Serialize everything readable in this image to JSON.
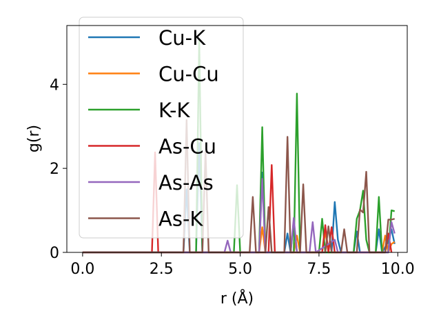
{
  "chart_data": {
    "type": "line",
    "title": "",
    "xlabel": "r (Å)",
    "ylabel": "g(r)",
    "xlim": [
      -0.5,
      10.3
    ],
    "ylim": [
      0,
      5.4
    ],
    "xticks": [
      0.0,
      2.5,
      5.0,
      7.5,
      10.0
    ],
    "xtick_labels": [
      "0.0",
      "2.5",
      "5.0",
      "7.5",
      "10.0"
    ],
    "yticks": [
      0,
      2,
      4
    ],
    "ytick_labels": [
      "0",
      "2",
      "4"
    ],
    "grid": false,
    "legend_position": "top-left",
    "series": [
      {
        "name": "Cu-K",
        "color": "#1f77b4",
        "points": [
          [
            0.0,
            0
          ],
          [
            3.2,
            0
          ],
          [
            3.3,
            1.5
          ],
          [
            3.4,
            0
          ],
          [
            3.6,
            0
          ],
          [
            3.7,
            2.6
          ],
          [
            3.8,
            0
          ],
          [
            5.6,
            0
          ],
          [
            5.7,
            1.9
          ],
          [
            5.8,
            0
          ],
          [
            6.4,
            0
          ],
          [
            6.5,
            0.45
          ],
          [
            6.6,
            0
          ],
          [
            6.7,
            0.75
          ],
          [
            6.8,
            0
          ],
          [
            7.9,
            0
          ],
          [
            8.0,
            1.2
          ],
          [
            8.1,
            0.3
          ],
          [
            8.2,
            0
          ],
          [
            8.6,
            0
          ],
          [
            8.7,
            0.5
          ],
          [
            8.8,
            0
          ],
          [
            9.3,
            0
          ],
          [
            9.4,
            0.55
          ],
          [
            9.5,
            0
          ],
          [
            9.7,
            0.25
          ],
          [
            9.8,
            0.55
          ],
          [
            9.9,
            0.2
          ]
        ]
      },
      {
        "name": "Cu-Cu",
        "color": "#ff7f0e",
        "points": [
          [
            0.0,
            0
          ],
          [
            5.6,
            0
          ],
          [
            5.7,
            0.6
          ],
          [
            5.8,
            0
          ],
          [
            6.7,
            0
          ],
          [
            6.8,
            0.4
          ],
          [
            6.9,
            0
          ],
          [
            7.6,
            0
          ],
          [
            7.7,
            0.5
          ],
          [
            7.8,
            0
          ],
          [
            9.5,
            0
          ],
          [
            9.6,
            0.4
          ],
          [
            9.7,
            0
          ],
          [
            9.8,
            0.2
          ],
          [
            9.9,
            0.25
          ]
        ]
      },
      {
        "name": "K-K",
        "color": "#2ca02c",
        "points": [
          [
            0.0,
            0
          ],
          [
            3.6,
            0
          ],
          [
            3.7,
            5.05
          ],
          [
            3.8,
            0
          ],
          [
            4.8,
            0
          ],
          [
            4.9,
            1.6
          ],
          [
            5.0,
            0
          ],
          [
            5.6,
            0
          ],
          [
            5.7,
            2.98
          ],
          [
            5.8,
            0
          ],
          [
            6.7,
            0
          ],
          [
            6.8,
            3.78
          ],
          [
            6.9,
            0
          ],
          [
            7.5,
            0
          ],
          [
            7.6,
            0.8
          ],
          [
            7.7,
            0
          ],
          [
            8.6,
            0
          ],
          [
            8.7,
            0.8
          ],
          [
            8.8,
            1.0
          ],
          [
            8.9,
            1.47
          ],
          [
            9.0,
            0.3
          ],
          [
            9.1,
            0
          ],
          [
            9.3,
            0
          ],
          [
            9.4,
            1.32
          ],
          [
            9.5,
            0
          ],
          [
            9.7,
            0
          ],
          [
            9.8,
            1.0
          ],
          [
            9.9,
            0.98
          ]
        ]
      },
      {
        "name": "As-Cu",
        "color": "#d62728",
        "points": [
          [
            0.0,
            0
          ],
          [
            2.2,
            0
          ],
          [
            2.3,
            2.38
          ],
          [
            2.4,
            0
          ],
          [
            5.9,
            0
          ],
          [
            6.0,
            2.08
          ],
          [
            6.1,
            0
          ],
          [
            7.6,
            0
          ],
          [
            7.7,
            0.65
          ],
          [
            7.8,
            0
          ],
          [
            7.9,
            0.6
          ],
          [
            8.0,
            0
          ],
          [
            9.6,
            0
          ],
          [
            9.7,
            0.45
          ],
          [
            9.8,
            0
          ]
        ]
      },
      {
        "name": "As-As",
        "color": "#9467bd",
        "points": [
          [
            0.0,
            0
          ],
          [
            4.5,
            0
          ],
          [
            4.6,
            0.28
          ],
          [
            4.7,
            0
          ],
          [
            5.6,
            0
          ],
          [
            5.7,
            1.75
          ],
          [
            5.8,
            0
          ],
          [
            6.6,
            0
          ],
          [
            6.7,
            0.82
          ],
          [
            6.8,
            0
          ],
          [
            7.2,
            0
          ],
          [
            7.3,
            0.72
          ],
          [
            7.4,
            0
          ],
          [
            8.0,
            0.3
          ],
          [
            8.1,
            0
          ],
          [
            9.7,
            0
          ],
          [
            9.8,
            0.72
          ],
          [
            9.9,
            0.45
          ]
        ]
      },
      {
        "name": "As-K",
        "color": "#8c564b",
        "points": [
          [
            0.0,
            0
          ],
          [
            3.2,
            0
          ],
          [
            3.3,
            3.15
          ],
          [
            3.4,
            0
          ],
          [
            3.8,
            0
          ],
          [
            3.9,
            2.4
          ],
          [
            4.0,
            0
          ],
          [
            5.3,
            0
          ],
          [
            5.4,
            1.32
          ],
          [
            5.5,
            0
          ],
          [
            5.8,
            0
          ],
          [
            5.9,
            1.08
          ],
          [
            6.0,
            0
          ],
          [
            6.4,
            0
          ],
          [
            6.5,
            2.75
          ],
          [
            6.6,
            0
          ],
          [
            6.9,
            0
          ],
          [
            7.0,
            1.62
          ],
          [
            7.1,
            0
          ],
          [
            7.7,
            0
          ],
          [
            7.8,
            0.62
          ],
          [
            7.9,
            0
          ],
          [
            8.2,
            0
          ],
          [
            8.3,
            0.55
          ],
          [
            8.4,
            0
          ],
          [
            8.7,
            0
          ],
          [
            8.8,
            1.02
          ],
          [
            8.9,
            0.95
          ],
          [
            9.0,
            1.92
          ],
          [
            9.1,
            0
          ],
          [
            9.6,
            0
          ],
          [
            9.7,
            0.78
          ],
          [
            9.8,
            0.78
          ],
          [
            9.9,
            0.8
          ]
        ]
      }
    ]
  }
}
